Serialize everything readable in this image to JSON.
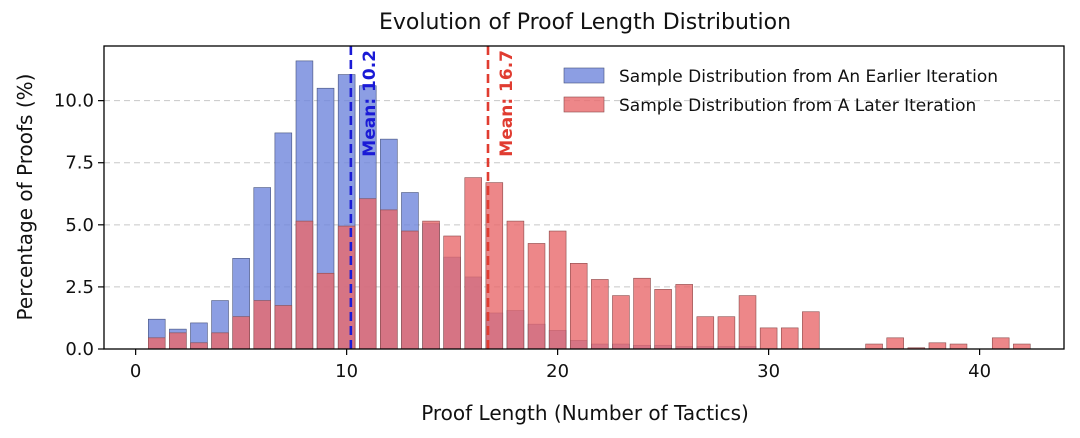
{
  "chart_data": {
    "type": "bar",
    "title": "Evolution of Proof Length Distribution",
    "xlabel": "Proof Length (Number of Tactics)",
    "ylabel": "Percentage of Proofs (%)",
    "xlim": [
      -1.5,
      44
    ],
    "ylim": [
      0,
      12.2
    ],
    "x_ticks": [
      0,
      10,
      20,
      30,
      40
    ],
    "y_ticks": [
      0.0,
      2.5,
      5.0,
      7.5,
      10.0
    ],
    "y_tick_labels": [
      "0.0",
      "2.5",
      "5.0",
      "7.5",
      "10.0"
    ],
    "grid": "horizontal dashed",
    "legend_position": "top-right",
    "series": [
      {
        "name": "Sample Distribution from An Earlier Iteration",
        "color": "#6f86dc",
        "x": [
          1,
          2,
          3,
          4,
          5,
          6,
          7,
          8,
          9,
          10,
          11,
          12,
          13,
          14,
          15,
          16,
          17,
          18,
          19,
          20,
          21,
          22,
          23,
          24,
          25,
          26,
          27,
          28,
          29
        ],
        "values": [
          1.2,
          0.8,
          1.05,
          1.95,
          3.65,
          6.5,
          8.7,
          11.6,
          10.5,
          11.05,
          10.6,
          8.45,
          6.3,
          5.05,
          3.7,
          2.9,
          1.45,
          1.55,
          1.0,
          0.75,
          0.35,
          0.2,
          0.2,
          0.15,
          0.15,
          0.1,
          0.1,
          0.1,
          0.1
        ]
      },
      {
        "name": "Sample Distribution from A Later Iteration",
        "color": "#e8696b",
        "x": [
          1,
          2,
          3,
          4,
          5,
          6,
          7,
          8,
          9,
          10,
          11,
          12,
          13,
          14,
          15,
          16,
          17,
          18,
          19,
          20,
          21,
          22,
          23,
          24,
          25,
          26,
          27,
          28,
          29,
          30,
          31,
          32,
          35,
          36,
          37,
          38,
          39,
          41,
          42
        ],
        "values": [
          0.45,
          0.65,
          0.25,
          0.65,
          1.3,
          1.95,
          1.75,
          5.15,
          3.05,
          4.95,
          6.05,
          5.6,
          4.75,
          5.15,
          4.55,
          6.9,
          6.7,
          5.15,
          4.25,
          4.75,
          3.45,
          2.8,
          2.15,
          2.85,
          2.4,
          2.6,
          1.3,
          1.3,
          2.15,
          0.85,
          0.85,
          1.5,
          0.2,
          0.45,
          0.05,
          0.25,
          0.2,
          0.45,
          0.2
        ]
      }
    ],
    "overlap_color": "#b5506b",
    "mean_lines": [
      {
        "value": 10.2,
        "label": "Mean: 10.2",
        "color": "#1a1ad6"
      },
      {
        "value": 16.7,
        "label": "Mean: 16.7",
        "color": "#e03c31"
      }
    ]
  }
}
